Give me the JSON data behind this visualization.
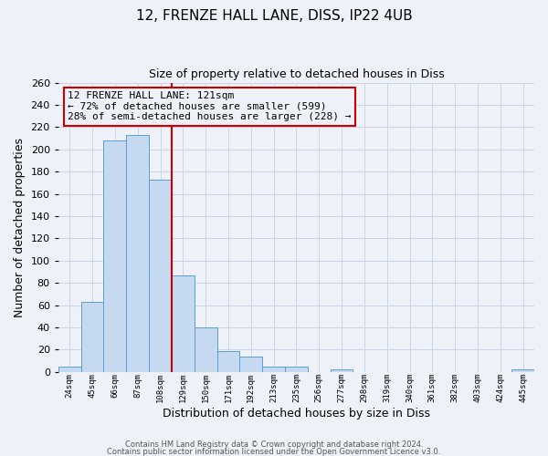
{
  "title_line1": "12, FRENZE HALL LANE, DISS, IP22 4UB",
  "title_line2": "Size of property relative to detached houses in Diss",
  "xlabel": "Distribution of detached houses by size in Diss",
  "ylabel": "Number of detached properties",
  "bar_labels": [
    "24sqm",
    "45sqm",
    "66sqm",
    "87sqm",
    "108sqm",
    "129sqm",
    "150sqm",
    "171sqm",
    "192sqm",
    "213sqm",
    "235sqm",
    "256sqm",
    "277sqm",
    "298sqm",
    "319sqm",
    "340sqm",
    "361sqm",
    "382sqm",
    "403sqm",
    "424sqm",
    "445sqm"
  ],
  "bar_values": [
    5,
    63,
    208,
    213,
    173,
    87,
    40,
    19,
    14,
    5,
    5,
    0,
    2,
    0,
    0,
    0,
    0,
    0,
    0,
    0,
    2
  ],
  "bar_color": "#c5d9f0",
  "bar_edge_color": "#5a9fd4",
  "grid_color": "#c8d4e8",
  "background_color": "#eef2f8",
  "vline_x_idx": 4.5,
  "vline_color": "#cc0000",
  "annotation_title": "12 FRENZE HALL LANE: 121sqm",
  "annotation_line2": "← 72% of detached houses are smaller (599)",
  "annotation_line3": "28% of semi-detached houses are larger (228) →",
  "annotation_box_edgecolor": "#cc0000",
  "ylim": [
    0,
    260
  ],
  "yticks": [
    0,
    20,
    40,
    60,
    80,
    100,
    120,
    140,
    160,
    180,
    200,
    220,
    240,
    260
  ],
  "footer_line1": "Contains HM Land Registry data © Crown copyright and database right 2024.",
  "footer_line2": "Contains public sector information licensed under the Open Government Licence v3.0."
}
